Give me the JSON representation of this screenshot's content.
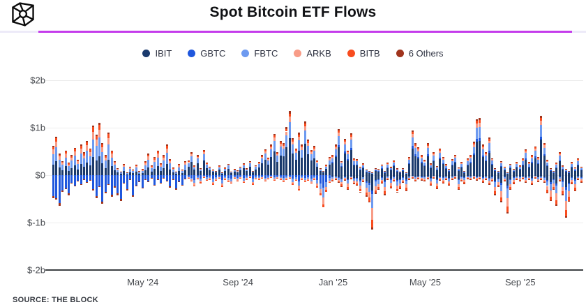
{
  "header": {
    "title": "Spot Bitcoin ETF Flows"
  },
  "divider": {
    "track_color": "#edeaf8",
    "fill_color": "#c43ceb"
  },
  "legend": [
    {
      "label": "IBIT",
      "color": "#1a3a6d"
    },
    {
      "label": "GBTC",
      "color": "#1f57dd"
    },
    {
      "label": "FBTC",
      "color": "#6d9af0"
    },
    {
      "label": "ARKB",
      "color": "#f89c87"
    },
    {
      "label": "BITB",
      "color": "#f84c1e"
    },
    {
      "label": "6 Others",
      "color": "#a0341d"
    }
  ],
  "source_note": "SOURCE: THE BLOCK",
  "chart_data": {
    "type": "bar",
    "stacked": true,
    "title": "Spot Bitcoin ETF Flows",
    "unit": "$M (daily net flow per bar pair: [inflow_total, outflow_total])",
    "grid": true,
    "legend_position": "top-center",
    "ylim": [
      -2000,
      2000
    ],
    "y_ticks": [
      {
        "label": "$2b",
        "value": 2000,
        "dark": false
      },
      {
        "label": "$1b",
        "value": 1000,
        "dark": false
      },
      {
        "label": "$0",
        "value": 0,
        "dark": false
      },
      {
        "label": "$-1b",
        "value": -1000,
        "dark": false
      },
      {
        "label": "$-2b",
        "value": -2000,
        "dark": true
      }
    ],
    "x_ticks": [
      {
        "label": "May '24",
        "bar_index": 29
      },
      {
        "label": "Sep '24",
        "bar_index": 60
      },
      {
        "label": "Jan '25",
        "bar_index": 91
      },
      {
        "label": "May '25",
        "bar_index": 121
      },
      {
        "label": "Sep '25",
        "bar_index": 152
      }
    ],
    "series_order": [
      "IBIT",
      "GBTC",
      "FBTC",
      "ARKB",
      "BITB",
      "OTH"
    ],
    "series_colors": {
      "IBIT": "#1a3a6d",
      "GBTC": "#1f57dd",
      "FBTC": "#6d9af0",
      "ARKB": "#f89c87",
      "BITB": "#f84c1e",
      "OTH": "#a0341d"
    },
    "profiles": {
      "posA": {
        "IBIT": 0.36,
        "FBTC": 0.36,
        "ARKB": 0.15,
        "BITB": 0.09,
        "OTH": 0.04
      },
      "posB": {
        "IBIT": 0.58,
        "FBTC": 0.25,
        "ARKB": 0.08,
        "BITB": 0.05,
        "OTH": 0.04
      },
      "posC": {
        "IBIT": 0.6,
        "GBTC": 0.05,
        "FBTC": 0.2,
        "ARKB": 0.07,
        "BITB": 0.05,
        "OTH": 0.03
      },
      "negA": {
        "GBTC": 0.92,
        "OTH": 0.08
      },
      "negB": {
        "GBTC": 0.4,
        "FBTC": 0.3,
        "ARKB": 0.2,
        "BITB": 0.1
      },
      "negC": {
        "IBIT": 0.28,
        "GBTC": 0.07,
        "FBTC": 0.25,
        "ARKB": 0.22,
        "BITB": 0.14,
        "OTH": 0.04
      }
    },
    "eras": [
      {
        "until": 43,
        "pos": "posA",
        "neg": "negA"
      },
      {
        "until": 90,
        "pos": "posB",
        "neg": "negB"
      },
      {
        "until": 172,
        "pos": "posC",
        "neg": "negC"
      }
    ],
    "bars": [
      [
        620,
        -480
      ],
      [
        810,
        -520
      ],
      [
        450,
        -640
      ],
      [
        300,
        -350
      ],
      [
        520,
        -300
      ],
      [
        260,
        -420
      ],
      [
        420,
        -180
      ],
      [
        580,
        -240
      ],
      [
        330,
        -130
      ],
      [
        640,
        -200
      ],
      [
        480,
        -90
      ],
      [
        720,
        -160
      ],
      [
        560,
        -110
      ],
      [
        1050,
        -320
      ],
      [
        860,
        -480
      ],
      [
        1100,
        -250
      ],
      [
        680,
        -600
      ],
      [
        420,
        -380
      ],
      [
        900,
        -200
      ],
      [
        520,
        -450
      ],
      [
        300,
        -260
      ],
      [
        150,
        -420
      ],
      [
        80,
        -550
      ],
      [
        240,
        -180
      ],
      [
        60,
        -320
      ],
      [
        180,
        -90
      ],
      [
        120,
        -460
      ],
      [
        220,
        -240
      ],
      [
        90,
        -150
      ],
      [
        130,
        -280
      ],
      [
        290,
        -90
      ],
      [
        450,
        -150
      ],
      [
        200,
        -60
      ],
      [
        380,
        -220
      ],
      [
        520,
        -100
      ],
      [
        250,
        -180
      ],
      [
        420,
        -70
      ],
      [
        650,
        -120
      ],
      [
        340,
        -260
      ],
      [
        160,
        -90
      ],
      [
        80,
        -310
      ],
      [
        230,
        -150
      ],
      [
        120,
        -220
      ],
      [
        300,
        -80
      ],
      [
        310,
        -60
      ],
      [
        480,
        -130
      ],
      [
        200,
        -240
      ],
      [
        420,
        -80
      ],
      [
        150,
        -170
      ],
      [
        530,
        -50
      ],
      [
        260,
        -120
      ],
      [
        180,
        -90
      ],
      [
        120,
        -200
      ],
      [
        90,
        -110
      ],
      [
        200,
        -60
      ],
      [
        60,
        -250
      ],
      [
        160,
        -90
      ],
      [
        240,
        -140
      ],
      [
        80,
        -180
      ],
      [
        130,
        -70
      ],
      [
        100,
        -130
      ],
      [
        180,
        -60
      ],
      [
        250,
        -160
      ],
      [
        140,
        -90
      ],
      [
        300,
        -50
      ],
      [
        90,
        -200
      ],
      [
        210,
        -80
      ],
      [
        280,
        -90
      ],
      [
        420,
        -60
      ],
      [
        550,
        -130
      ],
      [
        370,
        -80
      ],
      [
        650,
        -50
      ],
      [
        870,
        -110
      ],
      [
        490,
        -70
      ],
      [
        720,
        -90
      ],
      [
        680,
        -140
      ],
      [
        1010,
        -90
      ],
      [
        1350,
        -60
      ],
      [
        780,
        -200
      ],
      [
        560,
        -120
      ],
      [
        890,
        -320
      ],
      [
        640,
        -90
      ],
      [
        1130,
        -150
      ],
      [
        750,
        -110
      ],
      [
        530,
        -180
      ],
      [
        620,
        -90
      ],
      [
        310,
        -260
      ],
      [
        150,
        -430
      ],
      [
        90,
        -680
      ],
      [
        220,
        -350
      ],
      [
        380,
        -160
      ],
      [
        420,
        -130
      ],
      [
        640,
        -90
      ],
      [
        970,
        -160
      ],
      [
        300,
        -240
      ],
      [
        760,
        -110
      ],
      [
        520,
        -300
      ],
      [
        880,
        -80
      ],
      [
        350,
        -190
      ],
      [
        340,
        -210
      ],
      [
        180,
        -360
      ],
      [
        250,
        -140
      ],
      [
        120,
        -450
      ],
      [
        90,
        -580
      ],
      [
        60,
        -1150
      ],
      [
        150,
        -390
      ],
      [
        130,
        -310
      ],
      [
        220,
        -170
      ],
      [
        90,
        -420
      ],
      [
        260,
        -90
      ],
      [
        170,
        -280
      ],
      [
        310,
        -130
      ],
      [
        140,
        -360
      ],
      [
        80,
        -290
      ],
      [
        150,
        -160
      ],
      [
        60,
        -330
      ],
      [
        380,
        -90
      ],
      [
        940,
        -60
      ],
      [
        670,
        -130
      ],
      [
        590,
        -80
      ],
      [
        420,
        -110
      ],
      [
        320,
        -130
      ],
      [
        670,
        -80
      ],
      [
        250,
        -210
      ],
      [
        480,
        -60
      ],
      [
        190,
        -290
      ],
      [
        560,
        -110
      ],
      [
        380,
        -170
      ],
      [
        230,
        -90
      ],
      [
        130,
        -220
      ],
      [
        340,
        -90
      ],
      [
        430,
        -60
      ],
      [
        160,
        -310
      ],
      [
        280,
        -130
      ],
      [
        90,
        -180
      ],
      [
        350,
        -70
      ],
      [
        420,
        -90
      ],
      [
        700,
        -60
      ],
      [
        1180,
        -110
      ],
      [
        1200,
        -80
      ],
      [
        640,
        -150
      ],
      [
        480,
        -90
      ],
      [
        790,
        -200
      ],
      [
        360,
        -120
      ],
      [
        150,
        -420
      ],
      [
        90,
        -250
      ],
      [
        300,
        -570
      ],
      [
        180,
        -130
      ],
      [
        60,
        -810
      ],
      [
        240,
        -310
      ],
      [
        130,
        -180
      ],
      [
        280,
        -90
      ],
      [
        200,
        -130
      ],
      [
        350,
        -80
      ],
      [
        550,
        -160
      ],
      [
        280,
        -90
      ],
      [
        420,
        -200
      ],
      [
        600,
        -60
      ],
      [
        380,
        -140
      ],
      [
        1250,
        -90
      ],
      [
        680,
        -160
      ],
      [
        320,
        -380
      ],
      [
        150,
        -550
      ],
      [
        90,
        -300
      ],
      [
        260,
        -640
      ],
      [
        480,
        -130
      ],
      [
        200,
        -420
      ],
      [
        130,
        -900
      ],
      [
        90,
        -560
      ],
      [
        280,
        -180
      ],
      [
        160,
        -330
      ],
      [
        350,
        -90
      ],
      [
        180,
        -150
      ]
    ]
  }
}
